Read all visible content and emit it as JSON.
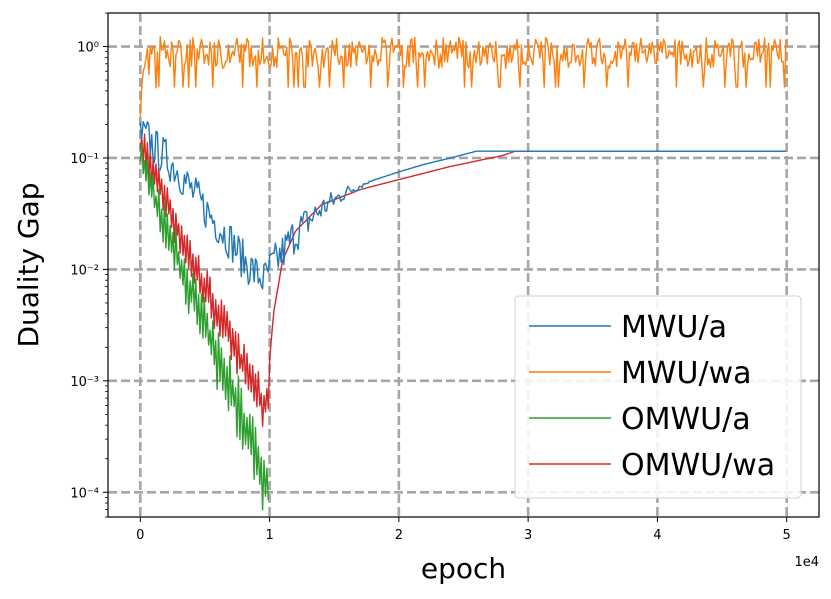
{
  "chart_data": {
    "type": "line",
    "xlabel": "epoch",
    "ylabel": "Duality Gap",
    "x_offset_label": "1e4",
    "x_scale": "linear",
    "y_scale": "log",
    "xlim": [
      -2500,
      52500
    ],
    "ylim": [
      6e-05,
      2.0
    ],
    "x_ticks": [
      0,
      10000,
      20000,
      30000,
      40000,
      50000
    ],
    "x_tick_labels": [
      "0",
      "1",
      "2",
      "3",
      "4",
      "5"
    ],
    "y_ticks": [
      0.0001,
      0.001,
      0.01,
      0.1,
      1
    ],
    "y_tick_labels": [
      "10⁻⁴",
      "10⁻³",
      "10⁻²",
      "10⁻¹",
      "10⁰"
    ],
    "grid": true,
    "grid_style": "dashed",
    "legend_position": "lower right",
    "series": [
      {
        "name": "MWU/a",
        "color": "#1f77b4",
        "x": [
          0,
          600,
          1200,
          2000,
          3000,
          4000,
          5000,
          6000,
          7000,
          8000,
          9000,
          9600,
          10000,
          11000,
          12000,
          14000,
          16000,
          18000,
          20000,
          22000,
          24000,
          26000,
          30000,
          40000,
          50000
        ],
        "y": [
          0.16,
          0.15,
          0.12,
          0.1,
          0.075,
          0.05,
          0.035,
          0.025,
          0.018,
          0.012,
          0.009,
          0.008,
          0.01,
          0.014,
          0.021,
          0.035,
          0.05,
          0.063,
          0.075,
          0.088,
          0.1,
          0.115,
          0.115,
          0.115,
          0.115
        ],
        "noise": 0.18
      },
      {
        "name": "MWU/wa",
        "color": "#ff7f0e",
        "x": [
          0,
          150,
          400,
          800,
          1500,
          2500,
          5000,
          10000,
          20000,
          30000,
          40000,
          50000
        ],
        "y": [
          0.28,
          0.45,
          0.65,
          0.82,
          0.9,
          0.88,
          0.88,
          0.88,
          0.88,
          0.88,
          0.88,
          0.88
        ],
        "noise": 0.14
      },
      {
        "name": "OMWU/a",
        "color": "#2ca02c",
        "x": [
          0,
          1000,
          2000,
          3000,
          4000,
          5000,
          6000,
          7000,
          8000,
          9000,
          9500,
          9900
        ],
        "y": [
          0.11,
          0.045,
          0.022,
          0.011,
          0.0055,
          0.0028,
          0.0014,
          0.0008,
          0.0004,
          0.0002,
          0.00012,
          0.00012
        ],
        "noise": 0.38
      },
      {
        "name": "OMWU/wa",
        "color": "#d62728",
        "x": [
          0,
          1000,
          2000,
          3000,
          4000,
          5000,
          6000,
          7000,
          8000,
          9000,
          9600,
          9900,
          10000,
          10300,
          11000,
          12000,
          14000,
          17000,
          20000,
          24000,
          28000,
          29000,
          40000,
          50000
        ],
        "y": [
          0.13,
          0.07,
          0.04,
          0.02,
          0.011,
          0.0065,
          0.0038,
          0.0022,
          0.0013,
          0.0008,
          0.0005,
          0.0008,
          0.0015,
          0.004,
          0.012,
          0.022,
          0.038,
          0.052,
          0.064,
          0.084,
          0.105,
          0.115,
          0.115,
          0.115
        ],
        "noise": 0.25
      }
    ]
  }
}
